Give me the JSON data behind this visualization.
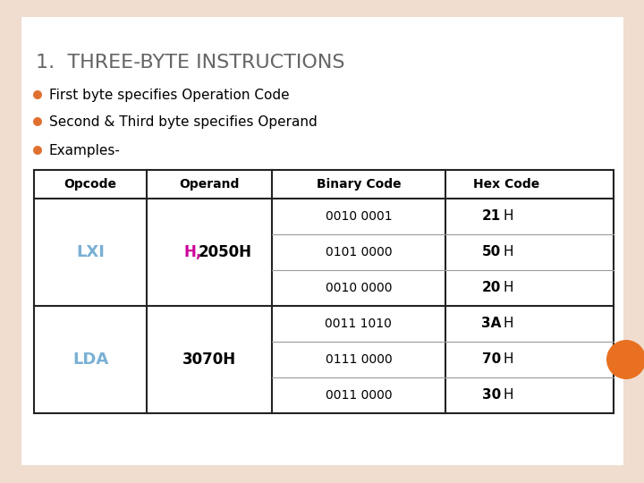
{
  "background_color": "#f0ddd0",
  "slide_bg": "#ffffff",
  "title": "1.  THREE-BYTE INSTRUCTIONS",
  "title_color": "#666666",
  "title_fontsize": 16,
  "bullet_color": "#e07030",
  "bullet_text_color": "#000000",
  "bullets": [
    "First byte specifies Operation Code",
    "Second & Third byte specifies Operand",
    "Examples-"
  ],
  "bullet_fontsize": 11,
  "table_headers": [
    "Opcode",
    "Operand",
    "Binary Code",
    "Hex Code"
  ],
  "table_header_fontsize": 10,
  "table_data_fontsize": 10,
  "col_props": [
    0.195,
    0.215,
    0.3,
    0.21
  ],
  "binary_codes": [
    "0010 0001",
    "0101 0000",
    "0010 0000",
    "0011 1010",
    "0111 0000",
    "0011 0000"
  ],
  "hex_nums": [
    "21",
    "50",
    "20",
    "3A",
    "70",
    "30"
  ],
  "orange_circle_color": "#e87020",
  "lxi_color": "#7ab0d4",
  "lda_color": "#7ab0d4",
  "magenta_color": "#cc0099"
}
